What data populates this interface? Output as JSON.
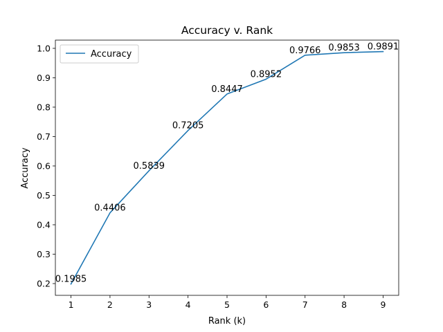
{
  "chart_data": {
    "type": "line",
    "title": "Accuracy v. Rank",
    "xlabel": "Rank (k)",
    "ylabel": "Accuracy",
    "x": [
      1,
      2,
      3,
      4,
      5,
      6,
      7,
      8,
      9
    ],
    "series": [
      {
        "name": "Accuracy",
        "color": "#1f77b4",
        "values": [
          0.1985,
          0.4406,
          0.5839,
          0.7205,
          0.8447,
          0.8952,
          0.9766,
          0.9853,
          0.9891
        ]
      }
    ],
    "data_labels": [
      "0.1985",
      "0.4406",
      "0.5839",
      "0.7205",
      "0.8447",
      "0.8952",
      "0.9766",
      "0.9853",
      "0.9891"
    ],
    "xlim": [
      0.6,
      9.4
    ],
    "ylim": [
      0.16,
      1.028
    ],
    "xticks": [
      1,
      2,
      3,
      4,
      5,
      6,
      7,
      8,
      9
    ],
    "xtick_labels": [
      "1",
      "2",
      "3",
      "4",
      "5",
      "6",
      "7",
      "8",
      "9"
    ],
    "yticks": [
      0.2,
      0.3,
      0.4,
      0.5,
      0.6,
      0.7,
      0.8,
      0.9,
      1.0
    ],
    "ytick_labels": [
      "0.2",
      "0.3",
      "0.4",
      "0.5",
      "0.6",
      "0.7",
      "0.8",
      "0.9",
      "1.0"
    ],
    "grid": false,
    "legend": {
      "position": "top-left",
      "entries": [
        "Accuracy"
      ]
    }
  }
}
